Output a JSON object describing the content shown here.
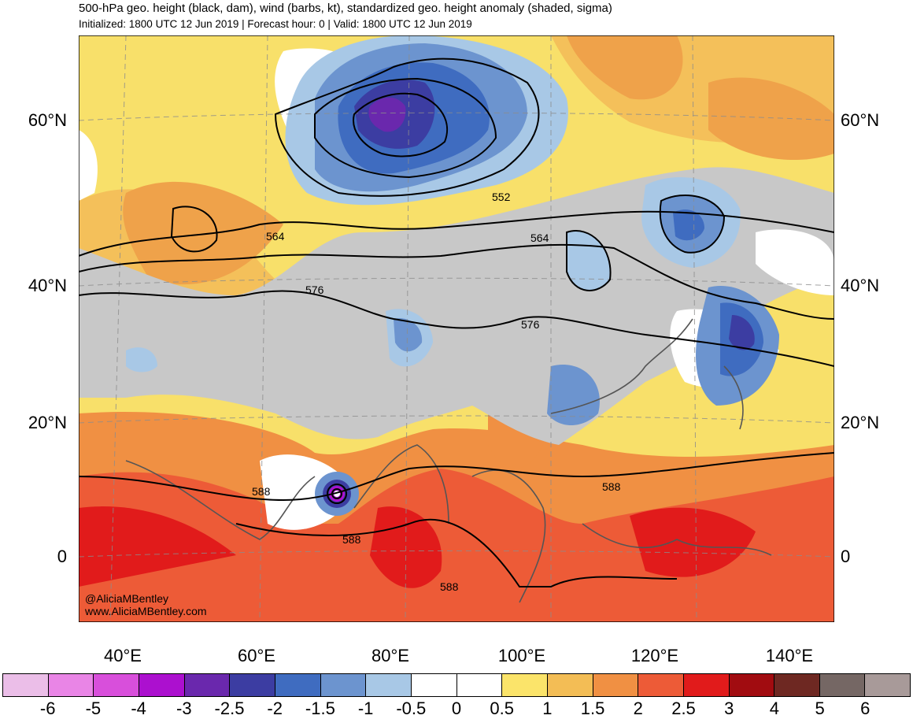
{
  "title": {
    "line1": "500-hPa geo. height (black, dam), wind (barbs, kt), standardized geo. height anomaly (shaded, sigma)",
    "line2": "Initialized: 1800 UTC 12 Jun 2019 | Forecast hour: 0 | Valid: 1800 UTC 12 Jun 2019"
  },
  "map": {
    "lat_labels": [
      "60°N",
      "40°N",
      "20°N",
      "0"
    ],
    "lon_labels": [
      "40°E",
      "60°E",
      "80°E",
      "100°E",
      "120°E",
      "140°E"
    ],
    "contour_labels": [
      "552",
      "564",
      "564",
      "576",
      "576",
      "588",
      "588",
      "588",
      "588"
    ],
    "credit_handle": "@AliciaMBentley",
    "credit_url": "www.AliciaMBentley.com"
  },
  "colorbar": {
    "colors": [
      "#ebbee8",
      "#e985e6",
      "#d84fdb",
      "#ac10cf",
      "#6a28ad",
      "#3c3da2",
      "#3f6cc0",
      "#6c94cf",
      "#a8c8e6",
      "#ffffff",
      "#ffffff",
      "#fbe46a",
      "#f3bd55",
      "#f09043",
      "#ed5b37",
      "#e11b1b",
      "#a10c10",
      "#6e2822",
      "#756764",
      "#a89a99"
    ],
    "tick_labels": [
      "-6",
      "-5",
      "-4",
      "-3",
      "-2.5",
      "-2",
      "-1.5",
      "-1",
      "-0.5",
      "0",
      "0.5",
      "1",
      "1.5",
      "2",
      "2.5",
      "3",
      "4",
      "5",
      "6"
    ]
  }
}
